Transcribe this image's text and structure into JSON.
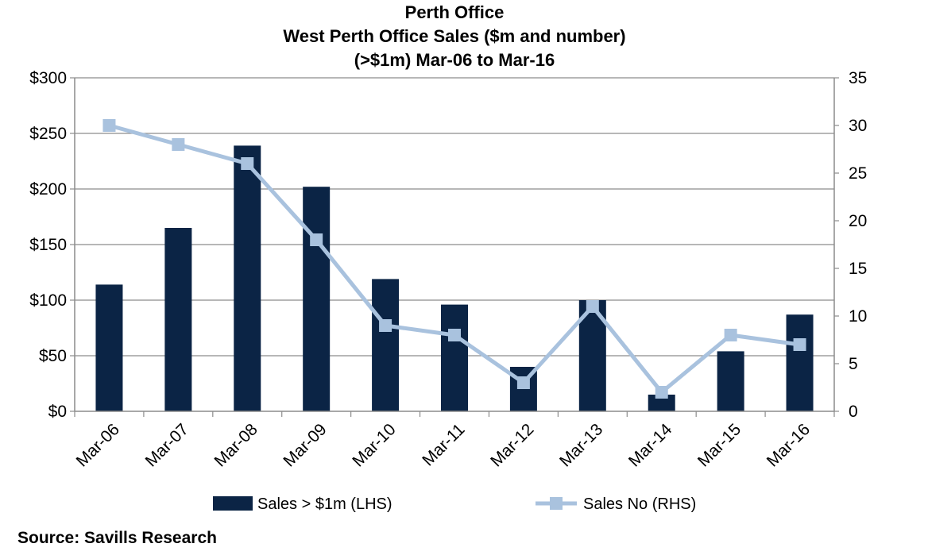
{
  "chart_data": {
    "type": "bar",
    "title_lines": [
      "Perth Office",
      "West Perth Office Sales ($m and number)",
      "(>$1m) Mar-06 to Mar-16"
    ],
    "categories": [
      "Mar-06",
      "Mar-07",
      "Mar-08",
      "Mar-09",
      "Mar-10",
      "Mar-11",
      "Mar-12",
      "Mar-13",
      "Mar-14",
      "Mar-15",
      "Mar-16"
    ],
    "series": [
      {
        "name": "Sales > $1m (LHS)",
        "type": "bar",
        "axis": "left",
        "color": "#0b2445",
        "values": [
          114,
          165,
          239,
          202,
          119,
          96,
          40,
          100,
          15,
          54,
          87
        ]
      },
      {
        "name": "Sales No (RHS)",
        "type": "line",
        "axis": "right",
        "color": "#a9c2de",
        "values": [
          30,
          28,
          26,
          18,
          9,
          8,
          3,
          11,
          2,
          8,
          7
        ]
      }
    ],
    "left_axis": {
      "min": 0,
      "max": 300,
      "step": 50,
      "tick_labels": [
        "$0",
        "$50",
        "$100",
        "$150",
        "$200",
        "$250",
        "$300"
      ]
    },
    "right_axis": {
      "min": 0,
      "max": 35,
      "step": 5,
      "tick_labels": [
        "0",
        "5",
        "10",
        "15",
        "20",
        "25",
        "30",
        "35"
      ]
    },
    "grid": true,
    "legend_position": "bottom"
  },
  "footer": {
    "source": "Source: Savills Research"
  }
}
